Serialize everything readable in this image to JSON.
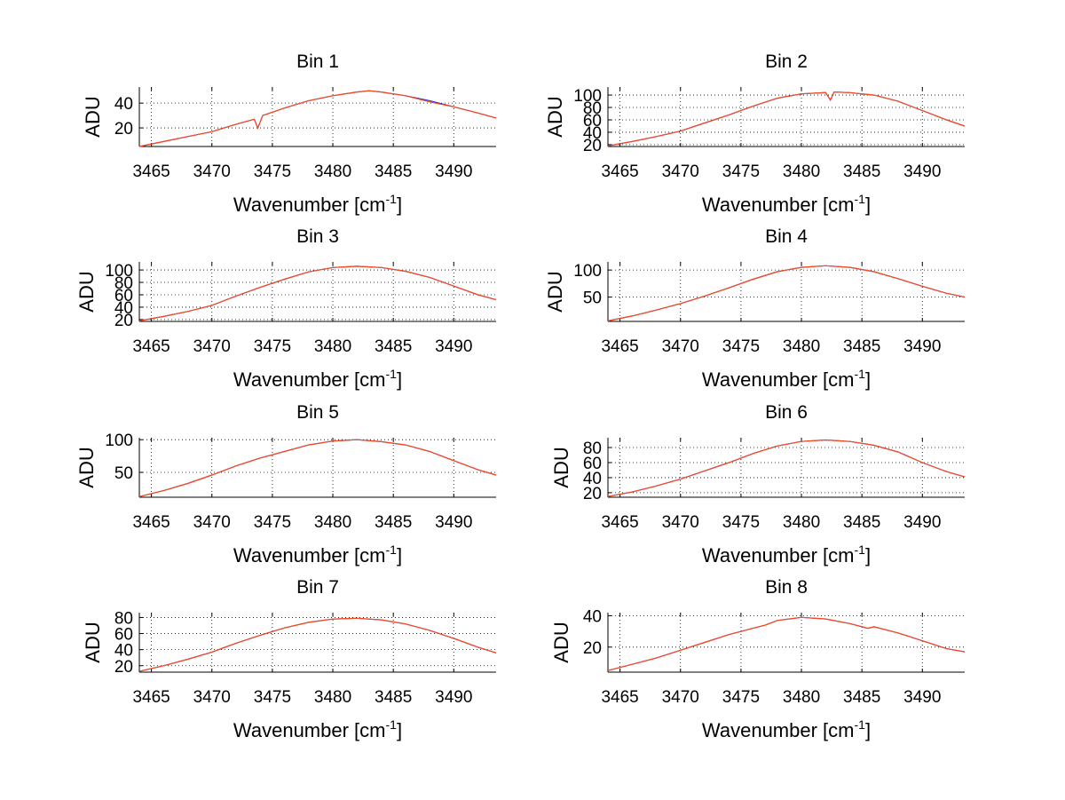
{
  "figure": {
    "background": "#ffffff",
    "series_colors": [
      "#1f2fd0",
      "#ff4a1a"
    ]
  },
  "chart_data": [
    {
      "type": "line",
      "title": "Bin 1",
      "xlabel": "Wavenumber [cm",
      "xlabel_sup": "-1",
      "xlabel_end": "]",
      "ylabel": "ADU",
      "xlim": [
        3464,
        3493.5
      ],
      "ylim": [
        5,
        53
      ],
      "xticks": [
        3465,
        3470,
        3475,
        3480,
        3485,
        3490
      ],
      "yticks": [
        20,
        40
      ],
      "xtick_labels": [
        "3465",
        "3470",
        "3475",
        "3480",
        "3485",
        "3490"
      ],
      "ytick_labels": [
        "20",
        "40"
      ],
      "grid": true,
      "x": [
        3464,
        3466,
        3468,
        3470,
        3472,
        3473.5,
        3473.8,
        3474.2,
        3476,
        3478,
        3480,
        3482,
        3483,
        3484,
        3486,
        3488,
        3490,
        3492,
        3493.5
      ],
      "series": [
        {
          "values": [
            5,
            9,
            13,
            17,
            23,
            27,
            20,
            30,
            36,
            42,
            46,
            49,
            50,
            49,
            46,
            42,
            37,
            32,
            28
          ]
        },
        {
          "values": [
            5,
            9,
            13,
            17,
            23,
            27,
            20,
            30,
            36,
            42,
            46,
            49,
            50,
            49,
            46,
            41,
            37,
            32,
            28
          ]
        }
      ]
    },
    {
      "type": "line",
      "title": "Bin 2",
      "xlabel": "Wavenumber [cm",
      "xlabel_sup": "-1",
      "xlabel_end": "]",
      "ylabel": "ADU",
      "xlim": [
        3464,
        3493.5
      ],
      "ylim": [
        17,
        113
      ],
      "xticks": [
        3465,
        3470,
        3475,
        3480,
        3485,
        3490
      ],
      "yticks": [
        20,
        40,
        60,
        80,
        100
      ],
      "xtick_labels": [
        "3465",
        "3470",
        "3475",
        "3480",
        "3485",
        "3490"
      ],
      "ytick_labels": [
        "20",
        "40",
        "60",
        "80",
        "100"
      ],
      "grid": true,
      "x": [
        3464,
        3466,
        3468,
        3470,
        3472,
        3474,
        3476,
        3478,
        3480,
        3482,
        3482.4,
        3482.7,
        3484,
        3486,
        3488,
        3490,
        3492,
        3493.5
      ],
      "series": [
        {
          "values": [
            18,
            25,
            33,
            42,
            55,
            68,
            82,
            95,
            102,
            104,
            92,
            105,
            104,
            100,
            90,
            75,
            60,
            50
          ]
        },
        {
          "values": [
            18,
            25,
            33,
            42,
            55,
            68,
            82,
            95,
            102,
            104,
            92,
            105,
            104,
            100,
            90,
            75,
            60,
            50
          ]
        }
      ]
    },
    {
      "type": "line",
      "title": "Bin 3",
      "xlabel": "Wavenumber [cm",
      "xlabel_sup": "-1",
      "xlabel_end": "]",
      "ylabel": "ADU",
      "xlim": [
        3464,
        3493.5
      ],
      "ylim": [
        17,
        113
      ],
      "xticks": [
        3465,
        3470,
        3475,
        3480,
        3485,
        3490
      ],
      "yticks": [
        20,
        40,
        60,
        80,
        100
      ],
      "xtick_labels": [
        "3465",
        "3470",
        "3475",
        "3480",
        "3485",
        "3490"
      ],
      "ytick_labels": [
        "20",
        "40",
        "60",
        "80",
        "100"
      ],
      "grid": true,
      "x": [
        3464,
        3466,
        3468,
        3470,
        3472,
        3474,
        3476,
        3478,
        3480,
        3482,
        3484,
        3486,
        3488,
        3490,
        3492,
        3493.5
      ],
      "series": [
        {
          "values": [
            18,
            25,
            33,
            43,
            58,
            72,
            85,
            97,
            104,
            106,
            104,
            98,
            88,
            74,
            60,
            52
          ]
        },
        {
          "values": [
            18,
            25,
            33,
            43,
            58,
            72,
            85,
            97,
            104,
            106,
            104,
            98,
            88,
            74,
            60,
            52
          ]
        }
      ]
    },
    {
      "type": "line",
      "title": "Bin 4",
      "xlabel": "Wavenumber [cm",
      "xlabel_sup": "-1",
      "xlabel_end": "]",
      "ylabel": "ADU",
      "xlim": [
        3464,
        3493.5
      ],
      "ylim": [
        5,
        115
      ],
      "xticks": [
        3465,
        3470,
        3475,
        3480,
        3485,
        3490
      ],
      "yticks": [
        50,
        100
      ],
      "xtick_labels": [
        "3465",
        "3470",
        "3475",
        "3480",
        "3485",
        "3490"
      ],
      "ytick_labels": [
        "50",
        "100"
      ],
      "grid": true,
      "x": [
        3464,
        3466,
        3468,
        3470,
        3472,
        3474,
        3476,
        3478,
        3480,
        3482,
        3484,
        3486,
        3488,
        3490,
        3492,
        3493.5
      ],
      "series": [
        {
          "values": [
            6,
            15,
            26,
            38,
            52,
            67,
            83,
            97,
            105,
            108,
            105,
            97,
            84,
            70,
            57,
            50
          ]
        },
        {
          "values": [
            6,
            15,
            26,
            38,
            52,
            67,
            83,
            97,
            105,
            108,
            105,
            97,
            84,
            70,
            57,
            50
          ]
        }
      ]
    },
    {
      "type": "line",
      "title": "Bin 5",
      "xlabel": "Wavenumber [cm",
      "xlabel_sup": "-1",
      "xlabel_end": "]",
      "ylabel": "ADU",
      "xlim": [
        3464,
        3493.5
      ],
      "ylim": [
        12,
        103
      ],
      "xticks": [
        3465,
        3470,
        3475,
        3480,
        3485,
        3490
      ],
      "yticks": [
        50,
        100
      ],
      "xtick_labels": [
        "3465",
        "3470",
        "3475",
        "3480",
        "3485",
        "3490"
      ],
      "ytick_labels": [
        "50",
        "100"
      ],
      "grid": true,
      "x": [
        3464,
        3466,
        3468,
        3470,
        3472,
        3474,
        3476,
        3478,
        3480,
        3482,
        3484,
        3486,
        3488,
        3490,
        3492,
        3493.5
      ],
      "series": [
        {
          "values": [
            13,
            22,
            33,
            46,
            60,
            72,
            82,
            92,
            98,
            100,
            97,
            92,
            82,
            68,
            54,
            46
          ]
        },
        {
          "values": [
            13,
            22,
            33,
            46,
            60,
            72,
            82,
            92,
            98,
            100,
            97,
            92,
            82,
            68,
            54,
            46
          ]
        }
      ]
    },
    {
      "type": "line",
      "title": "Bin 6",
      "xlabel": "Wavenumber [cm",
      "xlabel_sup": "-1",
      "xlabel_end": "]",
      "ylabel": "ADU",
      "xlim": [
        3464,
        3493.5
      ],
      "ylim": [
        14,
        93
      ],
      "xticks": [
        3465,
        3470,
        3475,
        3480,
        3485,
        3490
      ],
      "yticks": [
        20,
        40,
        60,
        80
      ],
      "xtick_labels": [
        "3465",
        "3470",
        "3475",
        "3480",
        "3485",
        "3490"
      ],
      "ytick_labels": [
        "20",
        "40",
        "60",
        "80"
      ],
      "grid": true,
      "x": [
        3464,
        3466,
        3468,
        3470,
        3472,
        3474,
        3476,
        3478,
        3480,
        3482,
        3484,
        3486,
        3488,
        3490,
        3492,
        3493.5
      ],
      "series": [
        {
          "values": [
            15,
            21,
            29,
            38,
            49,
            60,
            72,
            82,
            88,
            90,
            88,
            83,
            74,
            60,
            48,
            41
          ]
        },
        {
          "values": [
            15,
            21,
            29,
            38,
            49,
            60,
            72,
            82,
            88,
            90,
            88,
            83,
            74,
            60,
            48,
            41
          ]
        }
      ]
    },
    {
      "type": "line",
      "title": "Bin 7",
      "xlabel": "Wavenumber [cm",
      "xlabel_sup": "-1",
      "xlabel_end": "]",
      "ylabel": "ADU",
      "xlim": [
        3464,
        3493.5
      ],
      "ylim": [
        12,
        86
      ],
      "xticks": [
        3465,
        3470,
        3475,
        3480,
        3485,
        3490
      ],
      "yticks": [
        20,
        40,
        60,
        80
      ],
      "xtick_labels": [
        "3465",
        "3470",
        "3475",
        "3480",
        "3485",
        "3490"
      ],
      "ytick_labels": [
        "20",
        "40",
        "60",
        "80"
      ],
      "grid": true,
      "x": [
        3464,
        3466,
        3468,
        3470,
        3472,
        3474,
        3476,
        3478,
        3480,
        3482,
        3484,
        3486,
        3488,
        3490,
        3492,
        3493.5
      ],
      "series": [
        {
          "values": [
            13,
            20,
            28,
            37,
            48,
            58,
            67,
            74,
            78,
            79,
            77,
            72,
            64,
            54,
            43,
            36
          ]
        },
        {
          "values": [
            13,
            20,
            28,
            37,
            48,
            58,
            67,
            74,
            78,
            79,
            77,
            72,
            64,
            54,
            43,
            36
          ]
        }
      ]
    },
    {
      "type": "line",
      "title": "Bin 8",
      "xlabel": "Wavenumber [cm",
      "xlabel_sup": "-1",
      "xlabel_end": "]",
      "ylabel": "ADU",
      "xlim": [
        3464,
        3493.5
      ],
      "ylim": [
        4,
        42
      ],
      "xticks": [
        3465,
        3470,
        3475,
        3480,
        3485,
        3490
      ],
      "yticks": [
        20,
        40
      ],
      "xtick_labels": [
        "3465",
        "3470",
        "3475",
        "3480",
        "3485",
        "3490"
      ],
      "ytick_labels": [
        "20",
        "40"
      ],
      "grid": true,
      "x": [
        3464,
        3466,
        3468,
        3470,
        3472,
        3474,
        3476,
        3477,
        3478,
        3480,
        3482,
        3484,
        3485.5,
        3486,
        3488,
        3490,
        3492,
        3493.5
      ],
      "series": [
        {
          "values": [
            5,
            9,
            13,
            18,
            23,
            28,
            32,
            34,
            37,
            39,
            38,
            35,
            32,
            33,
            29,
            24,
            19,
            17
          ]
        },
        {
          "values": [
            5,
            9,
            13,
            18,
            23,
            28,
            32,
            34,
            37,
            39,
            38,
            35,
            32,
            33,
            29,
            24,
            19,
            17
          ]
        }
      ]
    }
  ]
}
